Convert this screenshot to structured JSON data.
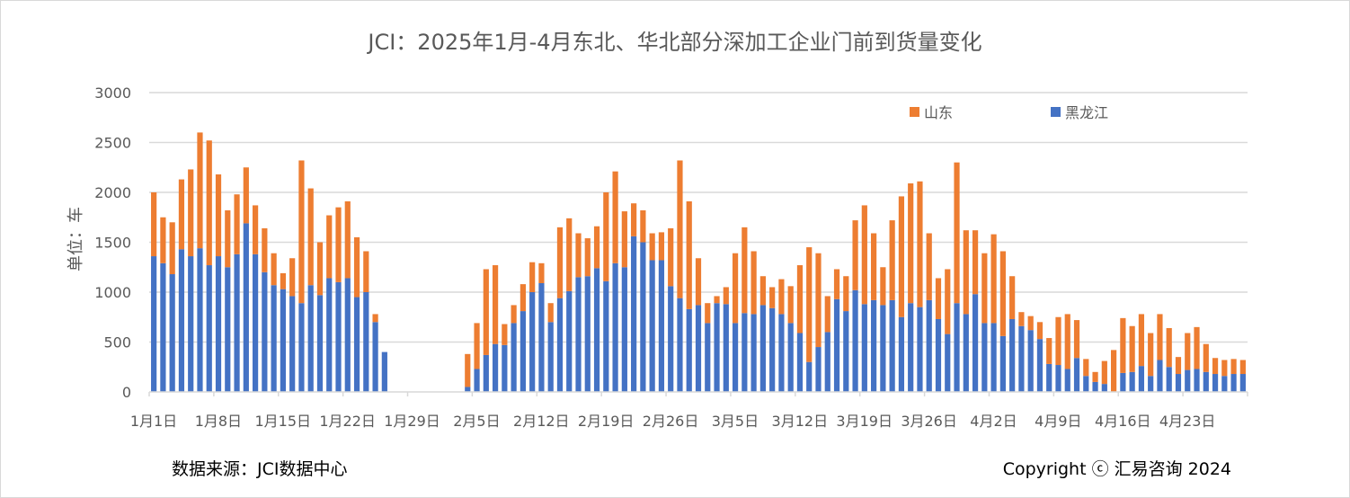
{
  "chart_data": {
    "type": "bar",
    "stacked": true,
    "title": "JCI：2025年1月-4月东北、华北部分深加工企业门前到货量变化",
    "ylabel": "单位：车",
    "xlabel": "",
    "ylim": [
      0,
      3000
    ],
    "yticks": [
      "0",
      "500",
      "1000",
      "1500",
      "2000",
      "2500",
      "3000"
    ],
    "grid": true,
    "legend_position": "top-right",
    "xtick_labels": [
      "1月1日",
      "1月8日",
      "1月15日",
      "1月22日",
      "1月29日",
      "2月5日",
      "2月12日",
      "2月19日",
      "2月26日",
      "3月5日",
      "3月12日",
      "3月19日",
      "3月26日",
      "4月2日",
      "4月9日",
      "4月16日",
      "4月23日"
    ],
    "categories": [
      "1月1日",
      "1月2日",
      "1月3日",
      "1月4日",
      "1月5日",
      "1月6日",
      "1月7日",
      "1月8日",
      "1月9日",
      "1月10日",
      "1月11日",
      "1月12日",
      "1月13日",
      "1月14日",
      "1月15日",
      "1月16日",
      "1月17日",
      "1月18日",
      "1月19日",
      "1月20日",
      "1月21日",
      "1月22日",
      "1月23日",
      "1月24日",
      "1月25日",
      "1月26日",
      "1月27日",
      "1月28日",
      "1月29日",
      "1月30日",
      "1月31日",
      "2月1日",
      "2月2日",
      "2月3日",
      "2月4日",
      "2月5日",
      "2月6日",
      "2月7日",
      "2月8日",
      "2月9日",
      "2月10日",
      "2月11日",
      "2月12日",
      "2月13日",
      "2月14日",
      "2月15日",
      "2月16日",
      "2月17日",
      "2月18日",
      "2月19日",
      "2月20日",
      "2月21日",
      "2月22日",
      "2月23日",
      "2月24日",
      "2月25日",
      "2月26日",
      "2月27日",
      "2月28日",
      "3月1日",
      "3月2日",
      "3月3日",
      "3月4日",
      "3月5日",
      "3月6日",
      "3月7日",
      "3月8日",
      "3月9日",
      "3月10日",
      "3月11日",
      "3月12日",
      "3月13日",
      "3月14日",
      "3月15日",
      "3月16日",
      "3月17日",
      "3月18日",
      "3月19日",
      "3月20日",
      "3月21日",
      "3月22日",
      "3月23日",
      "3月24日",
      "3月25日",
      "3月26日",
      "3月27日",
      "3月28日",
      "3月29日",
      "3月30日",
      "3月31日",
      "4月1日",
      "4月2日",
      "4月3日",
      "4月4日",
      "4月5日",
      "4月6日",
      "4月7日",
      "4月8日",
      "4月9日",
      "4月10日",
      "4月11日",
      "4月12日",
      "4月13日",
      "4月14日",
      "4月15日",
      "4月16日",
      "4月17日",
      "4月18日",
      "4月19日",
      "4月20日",
      "4月21日",
      "4月22日",
      "4月23日",
      "4月24日",
      "4月25日",
      "4月26日",
      "4月27日",
      "4月28日",
      "4月29日"
    ],
    "series": [
      {
        "name": "黑龙江",
        "color": "#4472C4",
        "values": [
          1360,
          1290,
          1180,
          1430,
          1360,
          1440,
          1270,
          1360,
          1250,
          1380,
          1690,
          1380,
          1200,
          1070,
          1030,
          960,
          890,
          1070,
          970,
          1140,
          1100,
          1140,
          950,
          1000,
          700,
          400,
          0,
          0,
          0,
          0,
          0,
          0,
          0,
          0,
          50,
          230,
          370,
          480,
          470,
          690,
          810,
          1000,
          1090,
          700,
          940,
          1010,
          1150,
          1160,
          1240,
          1110,
          1290,
          1250,
          1560,
          1500,
          1320,
          1320,
          1060,
          940,
          830,
          870,
          690,
          890,
          880,
          690,
          790,
          780,
          870,
          840,
          780,
          690,
          590,
          300,
          450,
          600,
          930,
          810,
          1020,
          880,
          920,
          870,
          920,
          750,
          890,
          850,
          920,
          730,
          580,
          890,
          780,
          980,
          690,
          690,
          560,
          730,
          660,
          620,
          530,
          280,
          270,
          230,
          340,
          160,
          100,
          80,
          0,
          190,
          200,
          260,
          160,
          320,
          250,
          180,
          220,
          230,
          200,
          180,
          160,
          180,
          180
        ]
      },
      {
        "name": "山东",
        "color": "#ED7D31",
        "values": [
          640,
          460,
          520,
          700,
          870,
          1160,
          1250,
          820,
          570,
          600,
          560,
          490,
          440,
          320,
          160,
          380,
          1430,
          970,
          530,
          630,
          750,
          770,
          600,
          410,
          80,
          0,
          0,
          0,
          0,
          0,
          0,
          0,
          0,
          0,
          330,
          460,
          860,
          790,
          210,
          180,
          270,
          300,
          200,
          190,
          710,
          730,
          440,
          380,
          420,
          890,
          920,
          560,
          330,
          320,
          270,
          280,
          580,
          1380,
          1080,
          470,
          200,
          70,
          170,
          700,
          860,
          630,
          290,
          210,
          350,
          370,
          680,
          1150,
          940,
          360,
          300,
          350,
          700,
          990,
          670,
          380,
          800,
          1210,
          1200,
          1260,
          670,
          410,
          650,
          1410,
          840,
          640,
          700,
          890,
          850,
          430,
          140,
          140,
          170,
          260,
          480,
          550,
          380,
          170,
          100,
          230,
          420,
          550,
          460,
          520,
          430,
          460,
          390,
          170,
          370,
          420,
          280,
          160,
          160,
          150,
          140
        ]
      }
    ]
  },
  "footer": {
    "source": "数据来源：JCI数据中心",
    "copyright": "Copyright ⓒ 汇易咨询 2024"
  }
}
